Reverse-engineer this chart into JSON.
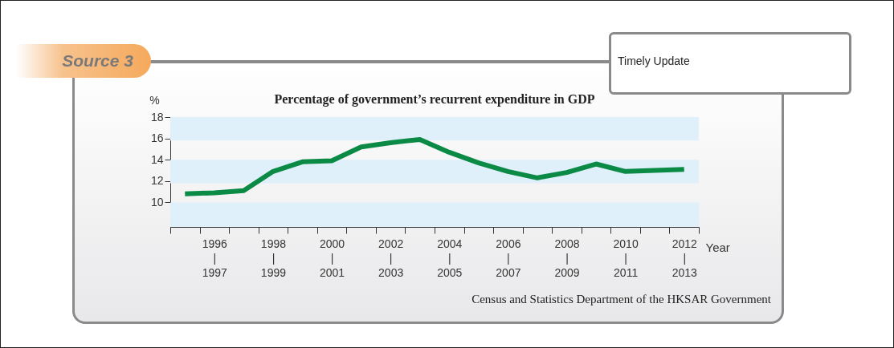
{
  "chart_data": {
    "type": "line",
    "title": "Percentage of government’s recurrent expenditure in GDP",
    "xlabel": "Year",
    "ylabel": "%",
    "categories": [
      null,
      "1996\n|\n1997",
      null,
      "1998\n|\n1999",
      null,
      "2000\n|\n2001",
      null,
      "2002\n|\n2003",
      null,
      "2004\n|\n2005",
      null,
      "2006\n|\n2007",
      null,
      "2008\n|\n2009",
      null,
      "2010\n|\n2011",
      null,
      "2012\n|\n2013"
    ],
    "series": [
      {
        "color": "#0a8a45",
        "values": [
          10.8,
          10.9,
          11.1,
          12.9,
          13.8,
          13.9,
          15.2,
          15.6,
          15.9,
          14.7,
          13.7,
          12.9,
          12.3,
          12.8,
          13.6,
          12.9,
          13.0,
          13.1
        ]
      }
    ],
    "ylim": [
      7.7,
      18
    ],
    "yticks": [
      10,
      12,
      14,
      16,
      18
    ],
    "grid": false,
    "marker": "none",
    "line_style": "solid",
    "bands": [
      {
        "axis": "y",
        "from": 15.8,
        "to": 18,
        "color": "#dff0fb"
      },
      {
        "axis": "y",
        "from": 11.8,
        "to": 14,
        "color": "#dff0fb"
      },
      {
        "axis": "y",
        "from": 7.7,
        "to": 10,
        "color": "#dff0fb"
      }
    ],
    "annotations": [
      "Source 3",
      "Timely Update",
      "Census and Statistics Department of the HKSAR Government"
    ]
  }
}
